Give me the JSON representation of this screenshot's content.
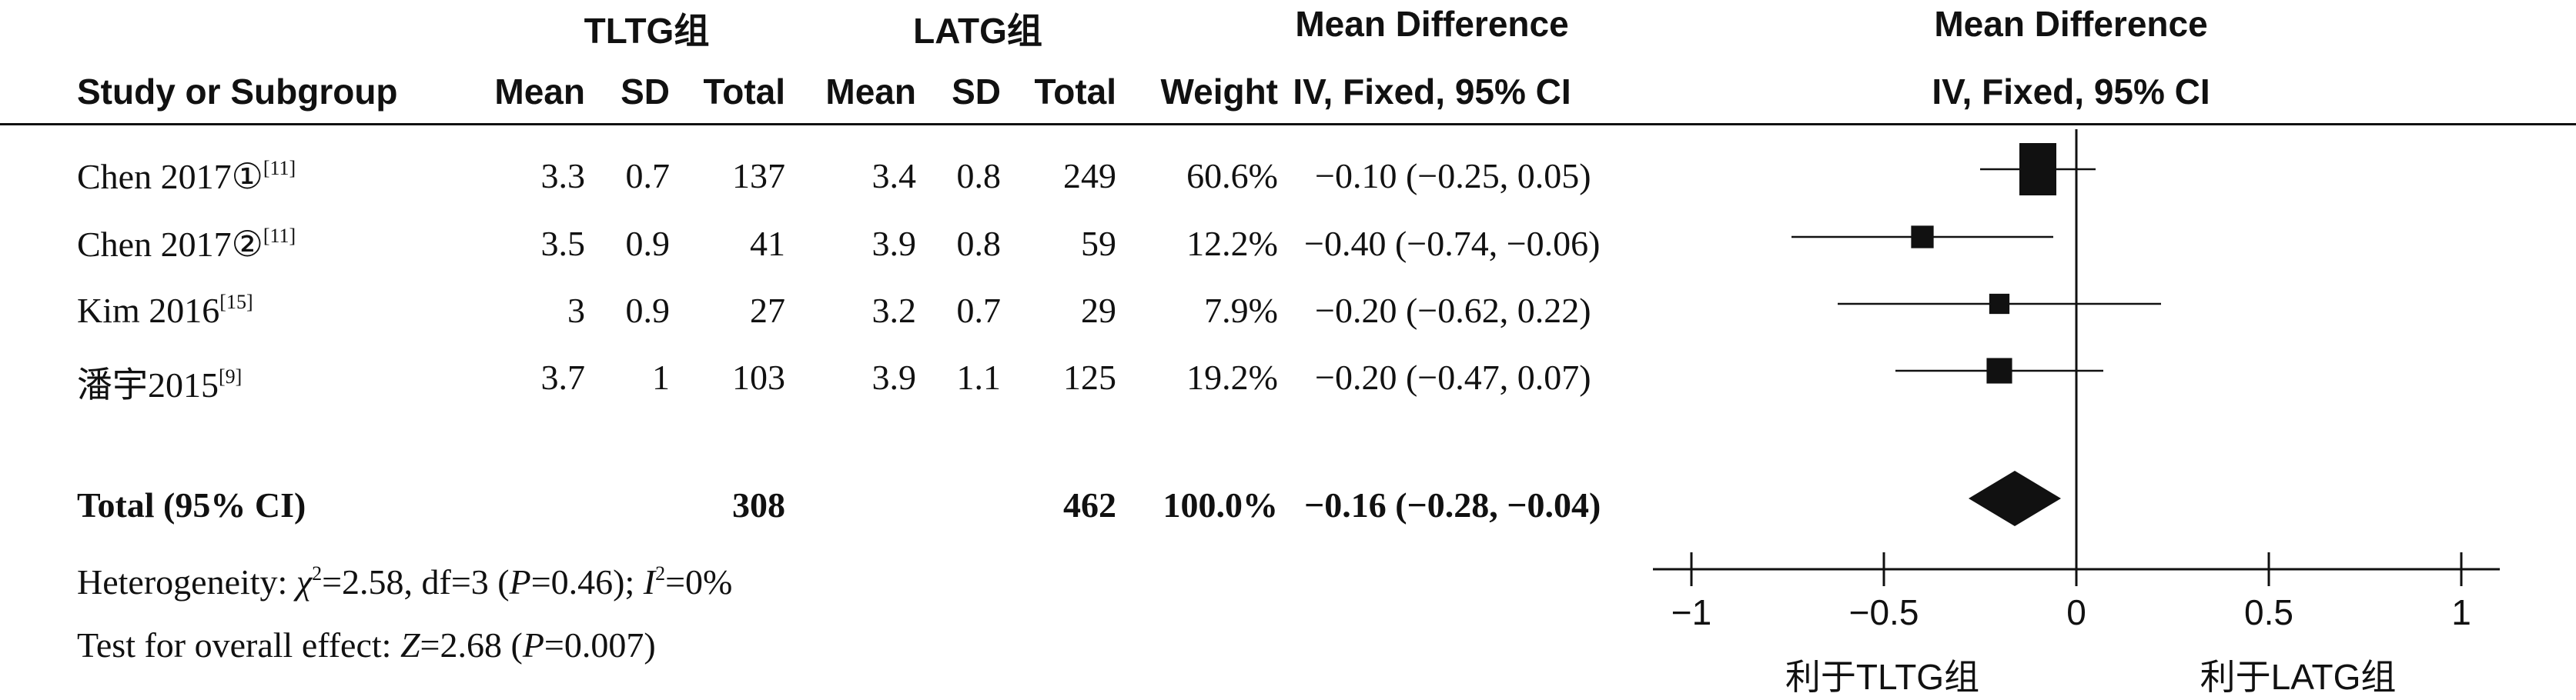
{
  "header": {
    "group1": "TLTG组",
    "group2": "LATG组",
    "effect_title_1": "Mean Difference",
    "effect_subtitle_1": "IV, Fixed, 95% CI",
    "effect_title_2": "Mean Difference",
    "effect_subtitle_2": "IV, Fixed, 95% CI",
    "study_col": "Study or Subgroup",
    "mean": "Mean",
    "sd": "SD",
    "total": "Total",
    "weight": "Weight"
  },
  "studies": [
    {
      "name": "Chen 2017①",
      "ref": "[11]",
      "m1": "3.3",
      "sd1": "0.7",
      "n1": "137",
      "m2": "3.4",
      "sd2": "0.8",
      "n2": "249",
      "weight": "60.6%",
      "ci_text": "−0.10 (−0.25, 0.05)"
    },
    {
      "name": "Chen 2017②",
      "ref": "[11]",
      "m1": "3.5",
      "sd1": "0.9",
      "n1": "41",
      "m2": "3.9",
      "sd2": "0.8",
      "n2": "59",
      "weight": "12.2%",
      "ci_text": "−0.40 (−0.74, −0.06)"
    },
    {
      "name": "Kim 2016",
      "ref": "[15]",
      "m1": "3",
      "sd1": "0.9",
      "n1": "27",
      "m2": "3.2",
      "sd2": "0.7",
      "n2": "29",
      "weight": "7.9%",
      "ci_text": "−0.20 (−0.62, 0.22)"
    },
    {
      "name": "潘宇2015",
      "ref": "[9]",
      "m1": "3.7",
      "sd1": "1",
      "n1": "103",
      "m2": "3.9",
      "sd2": "1.1",
      "n2": "125",
      "weight": "19.2%",
      "ci_text": "−0.20 (−0.47, 0.07)"
    }
  ],
  "total": {
    "label": "Total (95% CI)",
    "n1": "308",
    "n2": "462",
    "weight": "100.0%",
    "ci_text": "−0.16 (−0.28, −0.04)"
  },
  "heterogeneity": {
    "prefix": "Heterogeneity: ",
    "chi": "χ",
    "chi_rest": "=2.58, df=3 (",
    "p": "P",
    "p_rest": "=0.46); ",
    "i": "I",
    "i_rest": "=0%"
  },
  "overall": {
    "prefix": "Test for overall effect: ",
    "z": "Z",
    "z_rest": "=2.68 (",
    "p": "P",
    "p_rest": "=0.007)"
  },
  "chart_data": {
    "type": "scatter",
    "subtype": "forest",
    "xlim": [
      -1,
      1
    ],
    "ticks": [
      "−1",
      "−0.5",
      "0",
      "0.5",
      "1"
    ],
    "tick_values": [
      -1,
      -0.5,
      0,
      0.5,
      1
    ],
    "favours_left": "利于TLTG组",
    "favours_right": "利于LATG组",
    "studies": [
      {
        "name": "Chen 2017①",
        "md": -0.1,
        "lo": -0.25,
        "hi": 0.05,
        "weight": 60.6
      },
      {
        "name": "Chen 2017②",
        "md": -0.4,
        "lo": -0.74,
        "hi": -0.06,
        "weight": 12.2
      },
      {
        "name": "Kim 2016",
        "md": -0.2,
        "lo": -0.62,
        "hi": 0.22,
        "weight": 7.9
      },
      {
        "name": "潘宇2015",
        "md": -0.2,
        "lo": -0.47,
        "hi": 0.07,
        "weight": 19.2
      }
    ],
    "pooled": {
      "md": -0.16,
      "lo": -0.28,
      "hi": -0.04
    }
  }
}
